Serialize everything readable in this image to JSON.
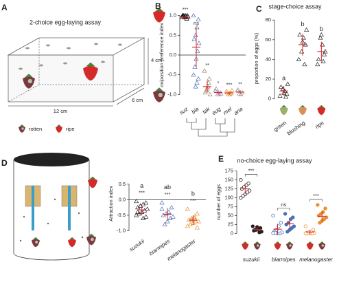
{
  "diagram": {
    "panel": "A",
    "title": "2-choice egg-laying assay",
    "height": "4 cm",
    "depth": "6 cm",
    "length": "12 cm",
    "legend": [
      "rotten",
      "ripe"
    ]
  },
  "diagram_d": {
    "panel": "D"
  },
  "chart_data": [
    {
      "type": "strip",
      "panel": "B",
      "ylabel": "oviposition preference index",
      "marker": "triangle",
      "zero_line": true,
      "ylim": [
        -1.15,
        1.15
      ],
      "yticks": [
        {
          "value": 1,
          "label": "1.0"
        },
        0.5,
        {
          "value": 0,
          "label": "0.0"
        },
        -0.5,
        {
          "value": -1,
          "label": "-1.0"
        }
      ],
      "series": [
        {
          "name": "suz",
          "color": "#000000",
          "values": [
            1,
            1,
            0.98,
            0.95,
            1,
            0.97,
            0.92,
            1,
            0.99,
            0.96
          ],
          "mean": 0.96,
          "error": 0.05,
          "annotation": "***"
        },
        {
          "name": "bia",
          "color": "#4a6fb5",
          "values": [
            1,
            0.9,
            0.7,
            0.5,
            0.4,
            0.3,
            0.1,
            -0.1,
            -0.3,
            -0.5,
            -0.6,
            -0.7,
            -0.8
          ],
          "mean": 0.2,
          "error": 0.5,
          "annotation": "ns"
        },
        {
          "name": "tak",
          "color": "#a0826d",
          "values": [
            -0.4,
            -0.6,
            -0.8,
            -0.9,
            -0.95,
            -1,
            -0.7,
            -0.85
          ],
          "mean": -0.8,
          "error": 0.15,
          "annotation": "**"
        },
        {
          "name": "eug",
          "color": "#9a8fb0",
          "values": [
            -0.9,
            -0.95,
            -1,
            -1,
            -0.85,
            -0.98
          ],
          "mean": -0.95,
          "error": 0.05,
          "annotation": "*"
        },
        {
          "name": "mel",
          "color": "#e8902a",
          "values": [
            -0.92,
            -0.97,
            -1,
            -1,
            -0.95,
            -0.9
          ],
          "mean": -0.96,
          "error": 0.04,
          "annotation": "***"
        },
        {
          "name": "ana",
          "color": "#999999",
          "values": [
            -0.9,
            -0.95,
            -1,
            -0.98,
            -0.88
          ],
          "mean": -0.94,
          "error": 0.05,
          "annotation": "**"
        }
      ]
    },
    {
      "type": "strip",
      "panel": "C",
      "title": "stage-choice assay",
      "ylabel": "proportion of eggs (%)",
      "marker": "triangle",
      "ylim": [
        -3,
        85
      ],
      "yticks": [
        0,
        20,
        40,
        60,
        80
      ],
      "series": [
        {
          "name": "green",
          "color": "#222222",
          "values": [
            3,
            5,
            8,
            10,
            12,
            15,
            2,
            6
          ],
          "mean": 8,
          "error": 5,
          "annotation": "a"
        },
        {
          "name": "blushing",
          "color": "#222222",
          "values": [
            40,
            55,
            62,
            48,
            65,
            70,
            35,
            58
          ],
          "mean": 55,
          "error": 11,
          "annotation": "b"
        },
        {
          "name": "ripe",
          "color": "#222222",
          "values": [
            35,
            45,
            55,
            62,
            40,
            48,
            38,
            65
          ],
          "mean": 48,
          "error": 10,
          "annotation": "b"
        }
      ]
    },
    {
      "type": "strip",
      "panel": "D",
      "ylabel": "Attraction index",
      "marker": "triangle",
      "zero_line": true,
      "ylim": [
        -1.1,
        0.85
      ],
      "yticks": [
        0.5,
        {
          "value": 0,
          "label": "0.0"
        },
        -0.5,
        {
          "value": -1,
          "label": "-1.0"
        }
      ],
      "series": [
        {
          "name": "suzukii",
          "color": "#222222",
          "values": [
            -0.05,
            -0.1,
            -0.15,
            -0.2,
            -0.25,
            -0.3,
            -0.35,
            -0.4,
            -0.45,
            -0.5,
            -0.55,
            -0.6,
            -0.2,
            -0.4
          ],
          "mean": -0.33,
          "error": 0.17,
          "letter": "a",
          "annotation": "***"
        },
        {
          "name": "biarmipes",
          "color": "#4a6fb5",
          "values": [
            -0.1,
            -0.25,
            -0.4,
            -0.45,
            -0.5,
            -0.55,
            -0.6,
            -0.7,
            -0.8,
            -0.3
          ],
          "mean": -0.47,
          "error": 0.2,
          "letter": "ab",
          "annotation": "***"
        },
        {
          "name": "melanogaster",
          "color": "#e8902a",
          "values": [
            -0.3,
            -0.45,
            -0.55,
            -0.6,
            -0.65,
            -0.7,
            -0.7,
            -0.75,
            -0.8,
            -0.85,
            -0.9,
            -0.6,
            -0.65
          ],
          "mean": -0.66,
          "error": 0.15,
          "letter": "b",
          "annotation": "***"
        }
      ]
    },
    {
      "type": "grouped-strip",
      "panel": "E",
      "title": "no-choice egg-laying assay",
      "ylabel": "number of eggs",
      "marker": "circle",
      "ylim": [
        -5,
        180
      ],
      "yticks": [
        0,
        25,
        50,
        75,
        100,
        125,
        150,
        175
      ],
      "series": [
        {
          "name": "suzukii",
          "annotation": "***",
          "columns": [
            {
              "color": "#222222",
              "filled": false,
              "values": [
                150,
                140,
                135,
                130,
                125,
                120,
                115,
                110,
                105,
                100
              ],
              "mean": 125,
              "error": 15
            },
            {
              "color": "#222222",
              "filled": true,
              "values": [
                20,
                15,
                12,
                10,
                8,
                5,
                3,
                18,
                10
              ],
              "mean": 11,
              "error": 6
            }
          ]
        },
        {
          "name": "biarmipes",
          "annotation": "ns",
          "columns": [
            {
              "color": "#4a6fb5",
              "filled": false,
              "values": [
                50,
                30,
                20,
                10,
                5,
                3,
                0,
                0,
                2,
                1
              ],
              "mean": 12,
              "error": 15
            },
            {
              "color": "#4a6fb5",
              "filled": true,
              "values": [
                55,
                45,
                40,
                30,
                25,
                20,
                15,
                10,
                5
              ],
              "mean": 27,
              "error": 15
            }
          ]
        },
        {
          "name": "melanogaster",
          "annotation": "***",
          "columns": [
            {
              "color": "#e8902a",
              "filled": false,
              "values": [
                20,
                10,
                5,
                3,
                2,
                1,
                0,
                0,
                0,
                0
              ],
              "mean": 4,
              "error": 6
            },
            {
              "color": "#e8902a",
              "filled": true,
              "values": [
                80,
                70,
                60,
                55,
                50,
                45,
                40,
                35,
                30
              ],
              "mean": 48,
              "error": 15
            }
          ]
        }
      ]
    }
  ]
}
